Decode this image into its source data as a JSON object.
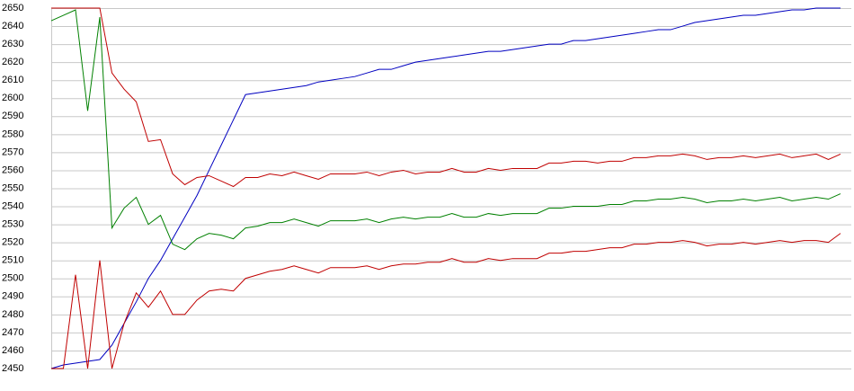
{
  "chart_data": {
    "type": "line",
    "ylim": [
      2450,
      2650
    ],
    "yticks": [
      2450,
      2460,
      2470,
      2480,
      2490,
      2500,
      2510,
      2520,
      2530,
      2540,
      2550,
      2560,
      2570,
      2580,
      2590,
      2600,
      2610,
      2620,
      2630,
      2640,
      2650
    ],
    "grid": true,
    "series": [
      {
        "color": "#0000c0",
        "values": [
          2450,
          2452,
          2453,
          2454,
          2455,
          2463,
          2475,
          2487,
          2500,
          2510,
          2522,
          2534,
          2546,
          2560,
          2574,
          2588,
          2602,
          2603,
          2604,
          2605,
          2606,
          2607,
          2609,
          2610,
          2611,
          2612,
          2614,
          2616,
          2616,
          2618,
          2620,
          2621,
          2622,
          2623,
          2624,
          2625,
          2626,
          2626,
          2627,
          2628,
          2629,
          2630,
          2630,
          2632,
          2632,
          2633,
          2634,
          2635,
          2636,
          2637,
          2638,
          2638,
          2640,
          2642,
          2643,
          2644,
          2645,
          2646,
          2646,
          2647,
          2648,
          2649,
          2649,
          2650,
          2650,
          2650
        ]
      },
      {
        "color": "#008000",
        "values": [
          2643,
          2646,
          2649,
          2593,
          2645,
          2528,
          2539,
          2545,
          2530,
          2535,
          2519,
          2516,
          2522,
          2525,
          2524,
          2522,
          2528,
          2529,
          2531,
          2531,
          2533,
          2531,
          2529,
          2532,
          2532,
          2532,
          2533,
          2531,
          2533,
          2534,
          2533,
          2534,
          2534,
          2536,
          2534,
          2534,
          2536,
          2535,
          2536,
          2536,
          2536,
          2539,
          2539,
          2540,
          2540,
          2540,
          2541,
          2541,
          2543,
          2543,
          2544,
          2544,
          2545,
          2544,
          2542,
          2543,
          2543,
          2544,
          2543,
          2544,
          2545,
          2543,
          2544,
          2545,
          2544,
          2547
        ]
      },
      {
        "color": "#c00000",
        "values": [
          2650,
          2650,
          2650,
          2650,
          2650,
          2614,
          2605,
          2598,
          2576,
          2577,
          2558,
          2552,
          2556,
          2557,
          2554,
          2551,
          2556,
          2556,
          2558,
          2557,
          2559,
          2557,
          2555,
          2558,
          2558,
          2558,
          2559,
          2557,
          2559,
          2560,
          2558,
          2559,
          2559,
          2561,
          2559,
          2559,
          2561,
          2560,
          2561,
          2561,
          2561,
          2564,
          2564,
          2565,
          2565,
          2564,
          2565,
          2565,
          2567,
          2567,
          2568,
          2568,
          2569,
          2568,
          2566,
          2567,
          2567,
          2568,
          2567,
          2568,
          2569,
          2567,
          2568,
          2569,
          2566,
          2569
        ]
      },
      {
        "color": "#c00000",
        "values": [
          2450,
          2450,
          2502,
          2450,
          2510,
          2450,
          2475,
          2492,
          2484,
          2493,
          2480,
          2480,
          2488,
          2493,
          2494,
          2493,
          2500,
          2502,
          2504,
          2505,
          2507,
          2505,
          2503,
          2506,
          2506,
          2506,
          2507,
          2505,
          2507,
          2508,
          2508,
          2509,
          2509,
          2511,
          2509,
          2509,
          2511,
          2510,
          2511,
          2511,
          2511,
          2514,
          2514,
          2515,
          2515,
          2516,
          2517,
          2517,
          2519,
          2519,
          2520,
          2520,
          2521,
          2520,
          2518,
          2519,
          2519,
          2520,
          2519,
          2520,
          2521,
          2520,
          2521,
          2521,
          2520,
          2525
        ]
      }
    ]
  }
}
